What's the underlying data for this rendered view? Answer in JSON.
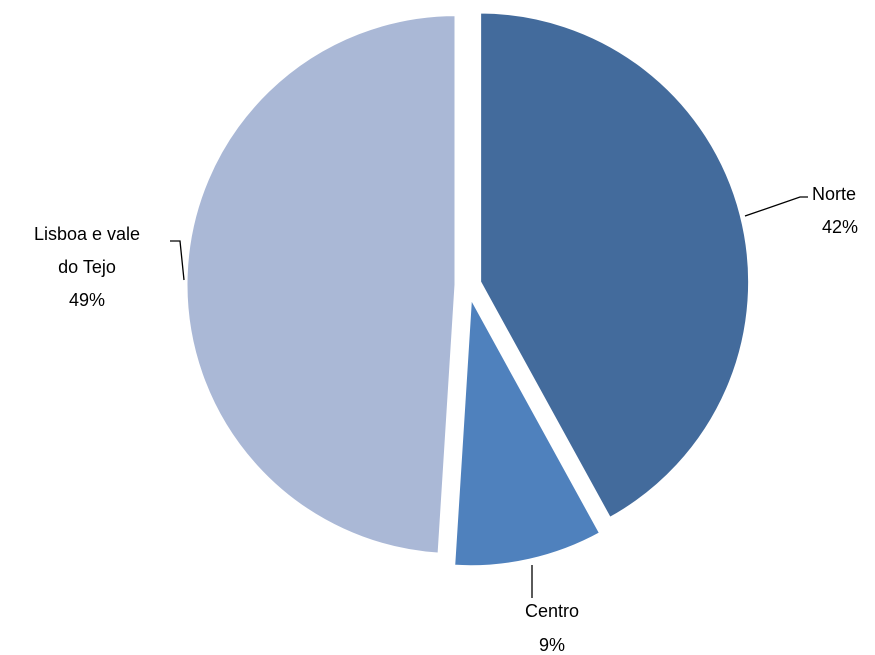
{
  "chart_data": {
    "type": "pie",
    "title": "",
    "slices": [
      {
        "name": "Norte",
        "percent_label": "42%",
        "value": 42,
        "color": "#436b9c"
      },
      {
        "name": "Centro",
        "percent_label": "9%",
        "value": 9,
        "color": "#4f81bd"
      },
      {
        "name": "Lisboa e vale do Tejo",
        "name_lines": [
          "Lisboa e vale",
          "do Tejo"
        ],
        "percent_label": "49%",
        "value": 49,
        "color": "#aab8d6"
      }
    ],
    "exploded": true,
    "legend": "none",
    "labels": "outside with leader lines"
  }
}
